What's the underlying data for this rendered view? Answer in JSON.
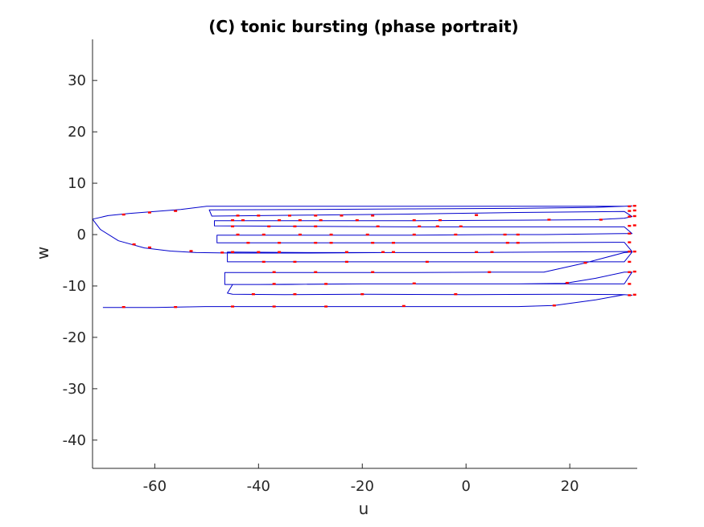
{
  "chart_data": {
    "type": "line",
    "title": "(C) tonic bursting (phase portrait)",
    "xlabel": "u",
    "ylabel": "w",
    "xlim": [
      -72,
      33
    ],
    "ylim": [
      -45.5,
      38
    ],
    "x_ticks": [
      -60,
      -40,
      -20,
      0,
      20
    ],
    "y_ticks": [
      30,
      20,
      10,
      0,
      -10,
      -20,
      -30,
      -40
    ],
    "grid": false,
    "legend": "none",
    "colors": {
      "trajectory": "#0000cc",
      "markers": "#ff0000",
      "axes": "#262626"
    },
    "series": [
      {
        "points": [
          [
            -70,
            -14.2
          ],
          [
            -60,
            -14.2
          ],
          [
            -50,
            -14.0
          ],
          [
            -40,
            -14.0
          ],
          [
            -30,
            -14.0
          ],
          [
            -20,
            -14.0
          ],
          [
            -10,
            -14.0
          ],
          [
            0,
            -14.0
          ],
          [
            10,
            -14.0
          ],
          [
            17,
            -13.8
          ],
          [
            25,
            -12.7
          ],
          [
            30.5,
            -11.7
          ],
          [
            32,
            -11.8
          ],
          [
            30.5,
            -11.7
          ],
          [
            20,
            -11.6
          ],
          [
            0,
            -11.7
          ],
          [
            -20,
            -11.6
          ],
          [
            -35,
            -11.7
          ],
          [
            -45,
            -11.6
          ],
          [
            -46,
            -11.4
          ],
          [
            -45,
            -9.7
          ],
          [
            -35,
            -9.7
          ],
          [
            -20,
            -9.6
          ],
          [
            0,
            -9.6
          ],
          [
            10,
            -9.6
          ],
          [
            19,
            -9.5
          ],
          [
            25,
            -8.5
          ],
          [
            30.5,
            -7.3
          ],
          [
            32,
            -7.3
          ],
          [
            30.5,
            -9.6
          ],
          [
            15,
            -9.6
          ],
          [
            0,
            -9.6
          ],
          [
            -20,
            -9.6
          ],
          [
            -40,
            -9.7
          ],
          [
            -46.5,
            -9.7
          ],
          [
            -46.5,
            -7.4
          ],
          [
            -30,
            -7.4
          ],
          [
            -10,
            -7.4
          ],
          [
            5,
            -7.3
          ],
          [
            15,
            -7.3
          ],
          [
            23,
            -5.5
          ],
          [
            30.5,
            -3.5
          ],
          [
            32,
            -3.4
          ],
          [
            30.5,
            -5.3
          ],
          [
            10,
            -5.3
          ],
          [
            -10,
            -5.3
          ],
          [
            -30,
            -5.3
          ],
          [
            -46,
            -5.3
          ],
          [
            -46,
            -3.4
          ],
          [
            -30,
            -3.5
          ],
          [
            -15,
            -3.5
          ],
          [
            0,
            -3.5
          ],
          [
            15,
            -3.4
          ],
          [
            30.5,
            -3.3
          ],
          [
            32,
            -3.3
          ],
          [
            30.5,
            -1.5
          ],
          [
            10,
            -1.6
          ],
          [
            -10,
            -1.6
          ],
          [
            -30,
            -1.6
          ],
          [
            -48,
            -1.6
          ],
          [
            -48,
            -0.1
          ],
          [
            -30,
            -0.1
          ],
          [
            -10,
            -0.1
          ],
          [
            5,
            0.0
          ],
          [
            15,
            0.0
          ],
          [
            30.5,
            0.2
          ],
          [
            32,
            0.2
          ],
          [
            30.5,
            1.5
          ],
          [
            10,
            1.5
          ],
          [
            -10,
            1.5
          ],
          [
            -30,
            1.6
          ],
          [
            -48.5,
            1.7
          ],
          [
            -48.5,
            2.7
          ],
          [
            -30,
            2.7
          ],
          [
            -10,
            2.7
          ],
          [
            10,
            2.8
          ],
          [
            25,
            2.9
          ],
          [
            30.5,
            3.2
          ],
          [
            32,
            3.5
          ],
          [
            30.5,
            4.5
          ],
          [
            10,
            4.3
          ],
          [
            -10,
            4.0
          ],
          [
            -30,
            3.8
          ],
          [
            -49,
            3.6
          ],
          [
            -49.5,
            4.8
          ],
          [
            -30,
            4.9
          ],
          [
            -10,
            5.0
          ],
          [
            10,
            5.1
          ],
          [
            25,
            5.3
          ],
          [
            30.5,
            5.5
          ],
          [
            32,
            5.6
          ],
          [
            30.5,
            5.5
          ],
          [
            0,
            5.5
          ],
          [
            -30,
            5.5
          ],
          [
            -50,
            5.5
          ],
          [
            -55,
            4.9
          ],
          [
            -60,
            4.5
          ],
          [
            -65,
            4.1
          ],
          [
            -69,
            3.7
          ],
          [
            -72,
            3.0
          ],
          [
            -70.5,
            1.0
          ],
          [
            -67,
            -1.2
          ],
          [
            -62,
            -2.6
          ],
          [
            -57,
            -3.2
          ],
          [
            -52,
            -3.5
          ],
          [
            -45,
            -3.6
          ],
          [
            -30,
            -3.6
          ],
          [
            -15,
            -3.5
          ],
          [
            0,
            -3.5
          ],
          [
            15,
            -3.4
          ],
          [
            30.5,
            -3.3
          ]
        ],
        "markers": [
          [
            -66,
            -14.1
          ],
          [
            -56,
            -14.1
          ],
          [
            -45,
            -14.0
          ],
          [
            -37,
            -14.0
          ],
          [
            -27,
            -14.0
          ],
          [
            -12,
            -13.9
          ],
          [
            17,
            -13.8
          ],
          [
            31.5,
            -11.8
          ],
          [
            32.5,
            -11.7
          ],
          [
            -41,
            -11.6
          ],
          [
            -33,
            -11.6
          ],
          [
            -20,
            -11.6
          ],
          [
            -2,
            -11.6
          ],
          [
            -37,
            -9.6
          ],
          [
            -27,
            -9.6
          ],
          [
            -10,
            -9.5
          ],
          [
            19.5,
            -9.4
          ],
          [
            31.5,
            -9.6
          ],
          [
            -37,
            -7.3
          ],
          [
            -29,
            -7.3
          ],
          [
            -18,
            -7.3
          ],
          [
            4.5,
            -7.3
          ],
          [
            31.5,
            -7.3
          ],
          [
            32.5,
            -7.2
          ],
          [
            -39,
            -5.3
          ],
          [
            -33,
            -5.3
          ],
          [
            -23,
            -5.3
          ],
          [
            -7.5,
            -5.3
          ],
          [
            23,
            -5.5
          ],
          [
            31.5,
            -5.3
          ],
          [
            -45,
            -3.4
          ],
          [
            -40,
            -3.4
          ],
          [
            -36,
            -3.4
          ],
          [
            -23,
            -3.4
          ],
          [
            -16,
            -3.4
          ],
          [
            -14,
            -3.4
          ],
          [
            2,
            -3.4
          ],
          [
            5,
            -3.4
          ],
          [
            31.5,
            -3.3
          ],
          [
            32.5,
            -3.3
          ],
          [
            -42,
            -1.6
          ],
          [
            -36,
            -1.6
          ],
          [
            -29,
            -1.6
          ],
          [
            -26,
            -1.6
          ],
          [
            -18,
            -1.6
          ],
          [
            -14,
            -1.6
          ],
          [
            8,
            -1.6
          ],
          [
            10,
            -1.6
          ],
          [
            31.5,
            -1.5
          ],
          [
            -44,
            0.0
          ],
          [
            -39,
            0.0
          ],
          [
            -32,
            0.0
          ],
          [
            -26,
            0.0
          ],
          [
            -19,
            0.0
          ],
          [
            -10,
            0.0
          ],
          [
            -2,
            0.0
          ],
          [
            7.5,
            0.0
          ],
          [
            10,
            0.0
          ],
          [
            31.5,
            0.2
          ],
          [
            -45,
            1.6
          ],
          [
            -38,
            1.6
          ],
          [
            -33,
            1.6
          ],
          [
            -29,
            1.6
          ],
          [
            -17,
            1.6
          ],
          [
            -9,
            1.6
          ],
          [
            -5.5,
            1.6
          ],
          [
            -1,
            1.6
          ],
          [
            31.5,
            1.7
          ],
          [
            32.5,
            1.8
          ],
          [
            -45,
            2.8
          ],
          [
            -43,
            2.8
          ],
          [
            -36,
            2.8
          ],
          [
            -32,
            2.8
          ],
          [
            -28,
            2.8
          ],
          [
            -21,
            2.8
          ],
          [
            -10,
            2.8
          ],
          [
            -5,
            2.8
          ],
          [
            16,
            2.9
          ],
          [
            26,
            2.9
          ],
          [
            31.5,
            3.5
          ],
          [
            32.5,
            3.6
          ],
          [
            -44,
            3.7
          ],
          [
            -40,
            3.7
          ],
          [
            -34,
            3.7
          ],
          [
            -29,
            3.7
          ],
          [
            -24,
            3.7
          ],
          [
            -18,
            3.7
          ],
          [
            2,
            3.8
          ],
          [
            31.5,
            4.6
          ],
          [
            32.5,
            4.7
          ],
          [
            31.5,
            5.5
          ],
          [
            32.5,
            5.6
          ],
          [
            -66,
            3.9
          ],
          [
            -61,
            4.3
          ],
          [
            -56,
            4.6
          ],
          [
            -64,
            -1.9
          ],
          [
            -61,
            -2.5
          ],
          [
            -53,
            -3.2
          ],
          [
            -47,
            -3.5
          ]
        ]
      }
    ]
  }
}
